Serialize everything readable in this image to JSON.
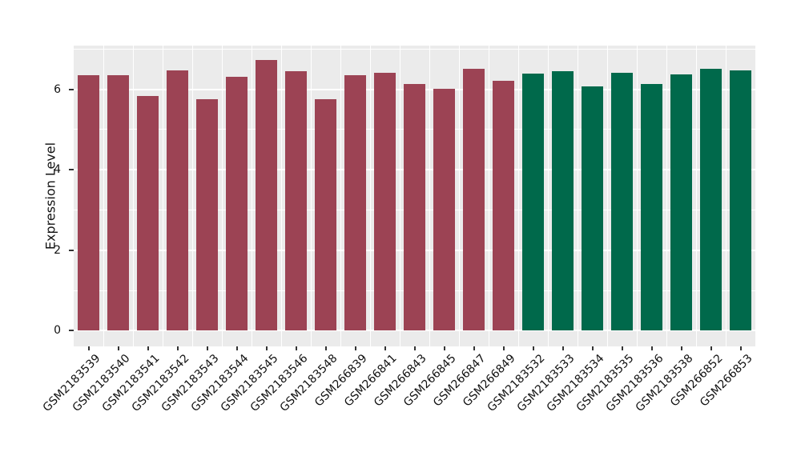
{
  "figure": {
    "background": "#ffffff",
    "panel_background": "#EBEBEB",
    "grid_color": "#ffffff",
    "tick_color": "#333333",
    "text_color": "#111111"
  },
  "chart_data": {
    "type": "bar",
    "title": "",
    "xlabel": "",
    "ylabel": "Expression Level",
    "ylim": [
      0,
      7.09
    ],
    "yticks": [
      0,
      2,
      4,
      6
    ],
    "yticks_minor": [
      1,
      3,
      5,
      7
    ],
    "grid": true,
    "legend_position": "none",
    "x_tick_rotation_deg": 45,
    "categories": [
      "GSM2183539",
      "GSM2183540",
      "GSM2183541",
      "GSM2183542",
      "GSM2183543",
      "GSM2183544",
      "GSM2183545",
      "GSM2183546",
      "GSM2183548",
      "GSM266839",
      "GSM266841",
      "GSM266843",
      "GSM266845",
      "GSM266847",
      "GSM266849",
      "GSM2183532",
      "GSM2183533",
      "GSM2183534",
      "GSM2183535",
      "GSM2183536",
      "GSM2183538",
      "GSM266852",
      "GSM266853"
    ],
    "values": [
      6.36,
      6.36,
      5.84,
      6.47,
      5.76,
      6.31,
      6.73,
      6.46,
      5.75,
      6.36,
      6.42,
      6.14,
      6.02,
      6.51,
      6.21,
      6.39,
      6.45,
      6.07,
      6.41,
      6.13,
      6.37,
      6.52,
      6.47
    ],
    "bar_group_index": [
      0,
      0,
      0,
      0,
      0,
      0,
      0,
      0,
      0,
      0,
      0,
      0,
      0,
      0,
      0,
      1,
      1,
      1,
      1,
      1,
      1,
      1,
      1
    ],
    "group_colors": [
      "#9C4354",
      "#00694B"
    ]
  }
}
